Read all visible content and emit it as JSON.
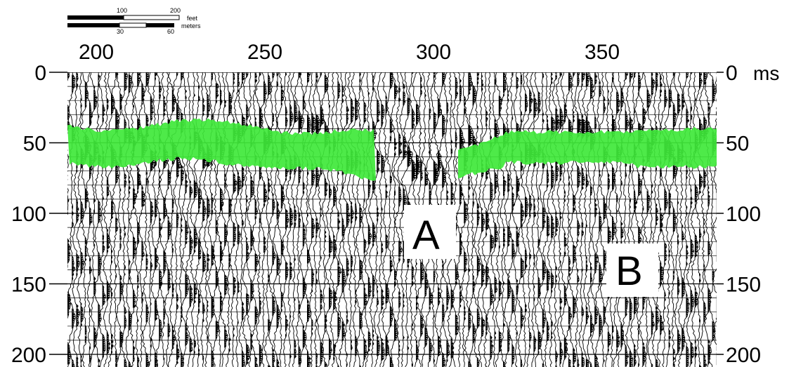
{
  "scale_bar": {
    "feet_ticks": [
      "100",
      "200"
    ],
    "feet_unit": "feet",
    "meters_ticks": [
      "30",
      "60"
    ],
    "meters_unit": "meters"
  },
  "top_axis": {
    "ticks": [
      "200",
      "250",
      "300",
      "350"
    ]
  },
  "left_axis": {
    "ticks": [
      "0",
      "50",
      "100",
      "150",
      "200"
    ]
  },
  "right_axis": {
    "ticks": [
      "0",
      "50",
      "100",
      "150",
      "200"
    ],
    "unit": "ms"
  },
  "markers": [
    {
      "label": "A"
    },
    {
      "label": "B"
    }
  ],
  "colors": {
    "background": "#ffffff",
    "trace": "#000000",
    "horizon": "#3fe83a"
  },
  "reflector_color_name": "green"
}
